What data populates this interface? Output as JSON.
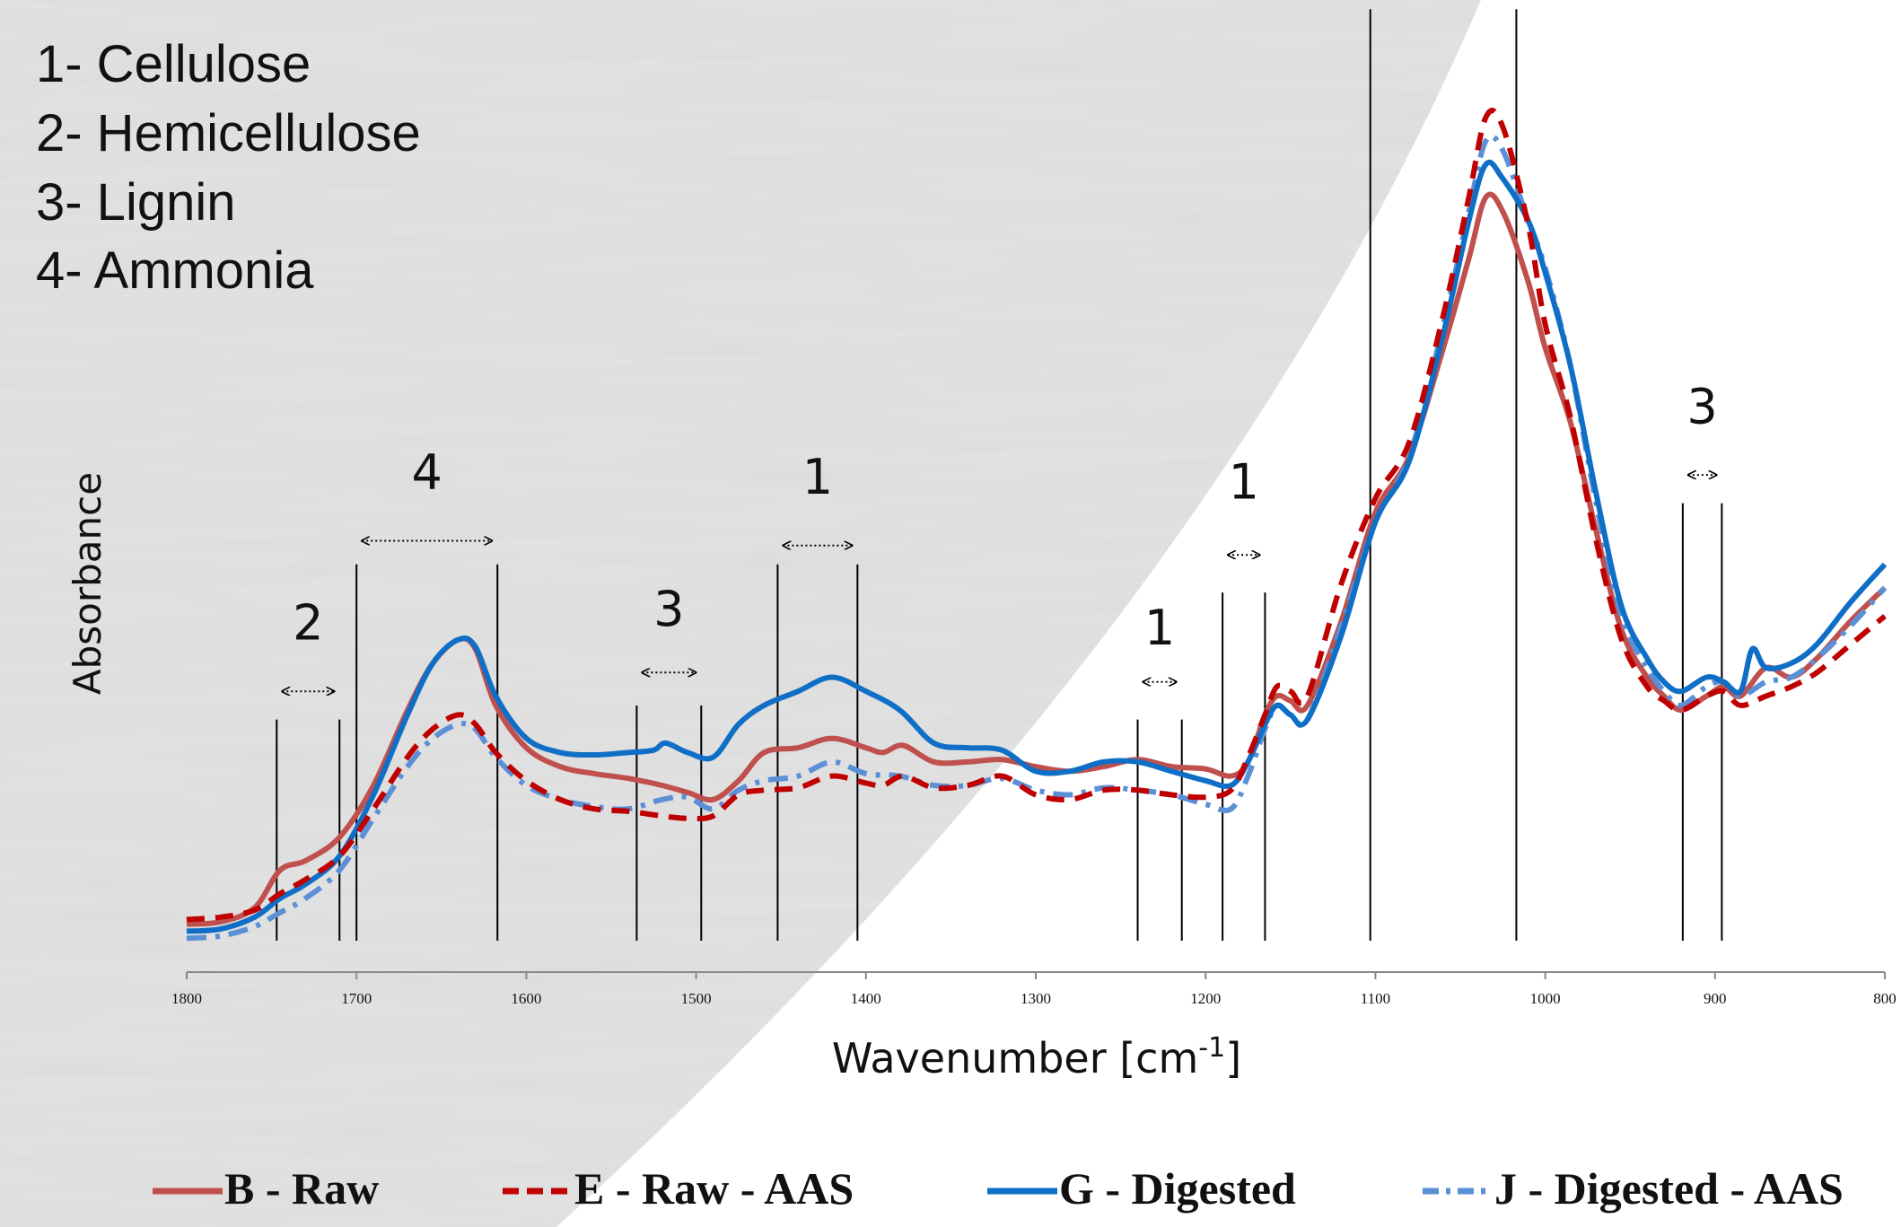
{
  "group_legend": [
    "1- Cellulose",
    "2- Hemicellulose",
    "3- Lignin",
    "4- Ammonia"
  ],
  "chart_data": {
    "type": "line",
    "title": "",
    "xlabel": "Wavenumber [cm-1]",
    "xlabel_main": "Wavenumber [cm",
    "xlabel_sup": "-1",
    "xlabel_end": "]",
    "ylabel": "Absorbance",
    "xlim": [
      1800,
      800
    ],
    "x_reversed": true,
    "ylim": [
      0,
      1.7
    ],
    "x_ticks": [
      1800,
      1700,
      1600,
      1500,
      1400,
      1300,
      1200,
      1100,
      1000,
      900,
      800
    ],
    "grid": false,
    "legend_position": "bottom",
    "region_markers": [
      {
        "label": "2",
        "from": 1747,
        "to": 1710,
        "top": 0.47,
        "arrow_y": 0.53,
        "label_y": 0.64
      },
      {
        "label": "4",
        "from": 1700,
        "to": 1617,
        "top": 0.8,
        "arrow_y": 0.85,
        "label_y": 0.96
      },
      {
        "label": "3",
        "from": 1535,
        "to": 1497,
        "top": 0.5,
        "arrow_y": 0.57,
        "label_y": 0.67
      },
      {
        "label": "1",
        "from": 1452,
        "to": 1405,
        "top": 0.8,
        "arrow_y": 0.84,
        "label_y": 0.95
      },
      {
        "label": "1",
        "from": 1240,
        "to": 1214,
        "top": 0.47,
        "arrow_y": 0.55,
        "label_y": 0.63
      },
      {
        "label": "1",
        "from": 1190,
        "to": 1165,
        "top": 0.74,
        "arrow_y": 0.82,
        "label_y": 0.94
      },
      {
        "label": "",
        "from": 1103,
        "to": 1017,
        "top": 1.98,
        "arrow_y": 2.02,
        "label_y": null
      },
      {
        "label": "3",
        "from": 919,
        "to": 896,
        "top": 0.93,
        "arrow_y": 0.99,
        "label_y": 1.1
      }
    ],
    "series": [
      {
        "name": "B - Raw",
        "color": "#c0504d",
        "dash": "solid",
        "points": [
          [
            1800,
            0.035
          ],
          [
            1780,
            0.04
          ],
          [
            1760,
            0.07
          ],
          [
            1745,
            0.15
          ],
          [
            1730,
            0.17
          ],
          [
            1710,
            0.22
          ],
          [
            1690,
            0.33
          ],
          [
            1670,
            0.49
          ],
          [
            1655,
            0.59
          ],
          [
            1640,
            0.64
          ],
          [
            1630,
            0.62
          ],
          [
            1618,
            0.5
          ],
          [
            1600,
            0.41
          ],
          [
            1580,
            0.37
          ],
          [
            1560,
            0.355
          ],
          [
            1540,
            0.345
          ],
          [
            1520,
            0.33
          ],
          [
            1505,
            0.315
          ],
          [
            1490,
            0.3
          ],
          [
            1475,
            0.34
          ],
          [
            1460,
            0.4
          ],
          [
            1440,
            0.41
          ],
          [
            1420,
            0.43
          ],
          [
            1400,
            0.41
          ],
          [
            1390,
            0.4
          ],
          [
            1378,
            0.415
          ],
          [
            1360,
            0.38
          ],
          [
            1340,
            0.38
          ],
          [
            1320,
            0.385
          ],
          [
            1300,
            0.37
          ],
          [
            1280,
            0.36
          ],
          [
            1260,
            0.37
          ],
          [
            1240,
            0.385
          ],
          [
            1220,
            0.37
          ],
          [
            1200,
            0.365
          ],
          [
            1185,
            0.35
          ],
          [
            1175,
            0.38
          ],
          [
            1165,
            0.48
          ],
          [
            1158,
            0.52
          ],
          [
            1150,
            0.51
          ],
          [
            1140,
            0.5
          ],
          [
            1120,
            0.68
          ],
          [
            1100,
            0.91
          ],
          [
            1080,
            1.03
          ],
          [
            1060,
            1.26
          ],
          [
            1045,
            1.45
          ],
          [
            1035,
            1.58
          ],
          [
            1025,
            1.55
          ],
          [
            1010,
            1.4
          ],
          [
            1000,
            1.26
          ],
          [
            985,
            1.1
          ],
          [
            970,
            0.87
          ],
          [
            955,
            0.66
          ],
          [
            940,
            0.56
          ],
          [
            930,
            0.52
          ],
          [
            920,
            0.49
          ],
          [
            905,
            0.52
          ],
          [
            895,
            0.54
          ],
          [
            885,
            0.52
          ],
          [
            870,
            0.58
          ],
          [
            855,
            0.56
          ],
          [
            840,
            0.6
          ],
          [
            820,
            0.68
          ],
          [
            800,
            0.75
          ]
        ]
      },
      {
        "name": "E - Raw - AAS",
        "color": "#c00000",
        "dash": "dashed",
        "points": [
          [
            1800,
            0.045
          ],
          [
            1780,
            0.05
          ],
          [
            1760,
            0.065
          ],
          [
            1745,
            0.1
          ],
          [
            1730,
            0.13
          ],
          [
            1710,
            0.18
          ],
          [
            1690,
            0.28
          ],
          [
            1670,
            0.39
          ],
          [
            1655,
            0.45
          ],
          [
            1640,
            0.48
          ],
          [
            1630,
            0.46
          ],
          [
            1618,
            0.4
          ],
          [
            1600,
            0.34
          ],
          [
            1580,
            0.3
          ],
          [
            1560,
            0.28
          ],
          [
            1540,
            0.275
          ],
          [
            1520,
            0.265
          ],
          [
            1505,
            0.26
          ],
          [
            1490,
            0.265
          ],
          [
            1475,
            0.31
          ],
          [
            1460,
            0.32
          ],
          [
            1440,
            0.325
          ],
          [
            1420,
            0.35
          ],
          [
            1400,
            0.335
          ],
          [
            1390,
            0.33
          ],
          [
            1378,
            0.35
          ],
          [
            1360,
            0.325
          ],
          [
            1340,
            0.33
          ],
          [
            1320,
            0.35
          ],
          [
            1300,
            0.31
          ],
          [
            1280,
            0.3
          ],
          [
            1260,
            0.32
          ],
          [
            1240,
            0.32
          ],
          [
            1220,
            0.31
          ],
          [
            1200,
            0.305
          ],
          [
            1185,
            0.32
          ],
          [
            1175,
            0.39
          ],
          [
            1165,
            0.48
          ],
          [
            1158,
            0.54
          ],
          [
            1150,
            0.53
          ],
          [
            1140,
            0.52
          ],
          [
            1120,
            0.76
          ],
          [
            1100,
            0.94
          ],
          [
            1080,
            1.06
          ],
          [
            1060,
            1.33
          ],
          [
            1045,
            1.58
          ],
          [
            1035,
            1.75
          ],
          [
            1025,
            1.73
          ],
          [
            1010,
            1.52
          ],
          [
            1000,
            1.31
          ],
          [
            985,
            1.11
          ],
          [
            970,
            0.85
          ],
          [
            955,
            0.64
          ],
          [
            940,
            0.54
          ],
          [
            930,
            0.51
          ],
          [
            920,
            0.49
          ],
          [
            905,
            0.52
          ],
          [
            895,
            0.53
          ],
          [
            885,
            0.5
          ],
          [
            870,
            0.52
          ],
          [
            855,
            0.54
          ],
          [
            840,
            0.57
          ],
          [
            820,
            0.63
          ],
          [
            800,
            0.69
          ]
        ]
      },
      {
        "name": "G - Digested",
        "color": "#0f6fc6",
        "dash": "solid",
        "points": [
          [
            1800,
            0.02
          ],
          [
            1780,
            0.025
          ],
          [
            1760,
            0.05
          ],
          [
            1745,
            0.09
          ],
          [
            1730,
            0.12
          ],
          [
            1710,
            0.18
          ],
          [
            1690,
            0.31
          ],
          [
            1670,
            0.48
          ],
          [
            1655,
            0.59
          ],
          [
            1640,
            0.64
          ],
          [
            1630,
            0.625
          ],
          [
            1618,
            0.52
          ],
          [
            1600,
            0.43
          ],
          [
            1580,
            0.4
          ],
          [
            1560,
            0.395
          ],
          [
            1540,
            0.4
          ],
          [
            1525,
            0.405
          ],
          [
            1518,
            0.42
          ],
          [
            1505,
            0.4
          ],
          [
            1490,
            0.39
          ],
          [
            1475,
            0.46
          ],
          [
            1460,
            0.5
          ],
          [
            1440,
            0.53
          ],
          [
            1420,
            0.56
          ],
          [
            1400,
            0.53
          ],
          [
            1380,
            0.49
          ],
          [
            1360,
            0.42
          ],
          [
            1340,
            0.41
          ],
          [
            1320,
            0.405
          ],
          [
            1300,
            0.36
          ],
          [
            1280,
            0.36
          ],
          [
            1260,
            0.38
          ],
          [
            1240,
            0.38
          ],
          [
            1220,
            0.36
          ],
          [
            1200,
            0.34
          ],
          [
            1185,
            0.33
          ],
          [
            1175,
            0.38
          ],
          [
            1165,
            0.46
          ],
          [
            1158,
            0.5
          ],
          [
            1150,
            0.48
          ],
          [
            1140,
            0.47
          ],
          [
            1120,
            0.65
          ],
          [
            1100,
            0.89
          ],
          [
            1080,
            1.02
          ],
          [
            1060,
            1.29
          ],
          [
            1045,
            1.53
          ],
          [
            1035,
            1.65
          ],
          [
            1025,
            1.62
          ],
          [
            1010,
            1.53
          ],
          [
            1000,
            1.42
          ],
          [
            985,
            1.22
          ],
          [
            970,
            0.95
          ],
          [
            955,
            0.71
          ],
          [
            940,
            0.6
          ],
          [
            930,
            0.55
          ],
          [
            920,
            0.53
          ],
          [
            905,
            0.56
          ],
          [
            895,
            0.55
          ],
          [
            885,
            0.53
          ],
          [
            878,
            0.62
          ],
          [
            870,
            0.58
          ],
          [
            855,
            0.59
          ],
          [
            840,
            0.63
          ],
          [
            820,
            0.72
          ],
          [
            800,
            0.8
          ]
        ]
      },
      {
        "name": "J - Digested - AAS",
        "color": "#5b8fd6",
        "dash": "dashdot",
        "points": [
          [
            1800,
            0.005
          ],
          [
            1780,
            0.01
          ],
          [
            1760,
            0.03
          ],
          [
            1745,
            0.06
          ],
          [
            1730,
            0.09
          ],
          [
            1710,
            0.15
          ],
          [
            1690,
            0.26
          ],
          [
            1670,
            0.37
          ],
          [
            1655,
            0.43
          ],
          [
            1640,
            0.46
          ],
          [
            1630,
            0.45
          ],
          [
            1618,
            0.39
          ],
          [
            1600,
            0.33
          ],
          [
            1580,
            0.3
          ],
          [
            1560,
            0.285
          ],
          [
            1540,
            0.28
          ],
          [
            1520,
            0.3
          ],
          [
            1505,
            0.305
          ],
          [
            1490,
            0.28
          ],
          [
            1475,
            0.32
          ],
          [
            1460,
            0.34
          ],
          [
            1440,
            0.35
          ],
          [
            1420,
            0.38
          ],
          [
            1400,
            0.355
          ],
          [
            1380,
            0.35
          ],
          [
            1360,
            0.33
          ],
          [
            1340,
            0.33
          ],
          [
            1320,
            0.345
          ],
          [
            1300,
            0.32
          ],
          [
            1280,
            0.31
          ],
          [
            1260,
            0.325
          ],
          [
            1240,
            0.32
          ],
          [
            1220,
            0.31
          ],
          [
            1200,
            0.29
          ],
          [
            1185,
            0.28
          ],
          [
            1175,
            0.35
          ],
          [
            1165,
            0.45
          ],
          [
            1158,
            0.5
          ],
          [
            1150,
            0.48
          ],
          [
            1140,
            0.47
          ],
          [
            1120,
            0.67
          ],
          [
            1100,
            0.89
          ],
          [
            1080,
            1.03
          ],
          [
            1060,
            1.31
          ],
          [
            1045,
            1.55
          ],
          [
            1035,
            1.7
          ],
          [
            1025,
            1.68
          ],
          [
            1010,
            1.53
          ],
          [
            1000,
            1.43
          ],
          [
            985,
            1.22
          ],
          [
            970,
            0.93
          ],
          [
            955,
            0.69
          ],
          [
            940,
            0.58
          ],
          [
            930,
            0.53
          ],
          [
            920,
            0.5
          ],
          [
            905,
            0.54
          ],
          [
            895,
            0.55
          ],
          [
            885,
            0.52
          ],
          [
            870,
            0.55
          ],
          [
            855,
            0.56
          ],
          [
            840,
            0.6
          ],
          [
            820,
            0.67
          ],
          [
            800,
            0.75
          ]
        ]
      }
    ]
  }
}
